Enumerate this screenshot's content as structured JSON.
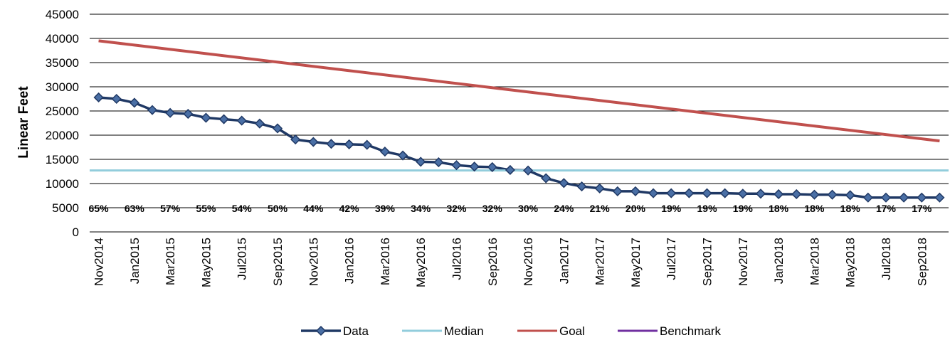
{
  "chart_data": {
    "type": "line",
    "ylabel": "Linear Feet",
    "xlabel": "",
    "title": "",
    "ylim": [
      0,
      45000
    ],
    "y_ticks": [
      0,
      5000,
      10000,
      15000,
      20000,
      25000,
      30000,
      35000,
      40000,
      45000
    ],
    "grid": "horizontal",
    "legend_position": "bottom",
    "x": [
      "Nov2014",
      "Dec2014",
      "Jan2015",
      "Feb2015",
      "Mar2015",
      "Apr2015",
      "May2015",
      "Jun2015",
      "Jul2015",
      "Aug2015",
      "Sep2015",
      "Oct2015",
      "Nov2015",
      "Dec2015",
      "Jan2016",
      "Feb2016",
      "Mar2016",
      "Apr2016",
      "May2016",
      "Jun2016",
      "Jul2016",
      "Aug2016",
      "Sep2016",
      "Oct2016",
      "Nov2016",
      "Dec2016",
      "Jan2017",
      "Feb2017",
      "Mar2017",
      "Apr2017",
      "May2017",
      "Jun2017",
      "Jul2017",
      "Aug2017",
      "Sep2017",
      "Oct2017",
      "Nov2017",
      "Dec2017",
      "Jan2018",
      "Feb2018",
      "Mar2018",
      "Apr2018",
      "May2018",
      "Jun2018",
      "Jul2018",
      "Aug2018",
      "Sep2018",
      "Oct2018"
    ],
    "x_tick_labels": [
      "Nov2014",
      "Jan2015",
      "Mar2015",
      "May2015",
      "Jul2015",
      "Sep2015",
      "Nov2015",
      "Jan2016",
      "Mar2016",
      "May2016",
      "Jul2016",
      "Sep2016",
      "Nov2016",
      "Jan2017",
      "Mar2017",
      "May2017",
      "Jul2017",
      "Sep2017",
      "Nov2017",
      "Jan2018",
      "Mar2018",
      "May2018",
      "Jul2018",
      "Sep2018"
    ],
    "series": [
      {
        "name": "Data",
        "color": "#1f3864",
        "marker": "diamond",
        "values": [
          27800,
          27500,
          26700,
          25200,
          24600,
          24400,
          23600,
          23300,
          23000,
          22400,
          21400,
          19100,
          18600,
          18200,
          18100,
          18000,
          16600,
          15800,
          14500,
          14400,
          13800,
          13500,
          13400,
          12800,
          12700,
          11100,
          10100,
          9400,
          9000,
          8400,
          8400,
          8000,
          8000,
          8000,
          8000,
          8000,
          7900,
          7900,
          7800,
          7800,
          7700,
          7700,
          7600,
          7100,
          7100,
          7100,
          7100,
          7100
        ]
      },
      {
        "name": "Median",
        "color": "#92cddc",
        "values_flat": 12700
      },
      {
        "name": "Goal",
        "color": "#c0504d",
        "start": 39500,
        "end": 18800
      },
      {
        "name": "Benchmark",
        "color": "#7030a0"
      }
    ],
    "annotations": {
      "y_value": 5000,
      "labels": [
        "65%",
        "63%",
        "57%",
        "55%",
        "54%",
        "50%",
        "44%",
        "42%",
        "39%",
        "34%",
        "32%",
        "32%",
        "30%",
        "24%",
        "21%",
        "20%",
        "19%",
        "19%",
        "19%",
        "18%",
        "18%",
        "18%",
        "17%",
        "17%"
      ]
    }
  },
  "legend": [
    {
      "label": "Data",
      "color": "#1f3864",
      "marker": "diamond"
    },
    {
      "label": "Median",
      "color": "#92cddc"
    },
    {
      "label": "Goal",
      "color": "#c0504d"
    },
    {
      "label": "Benchmark",
      "color": "#7030a0"
    }
  ]
}
